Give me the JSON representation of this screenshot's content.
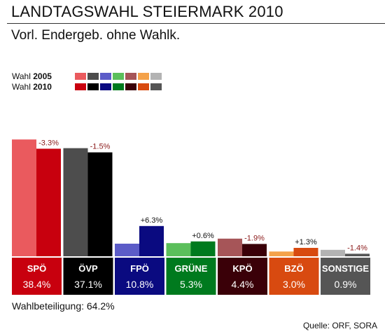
{
  "title": "LANDTAGSWAHL STEIERMARK 2010",
  "subtitle": "Vorl. Endergeb. ohne Wahlk.",
  "legend": [
    {
      "prefix": "Wahl ",
      "year": "2005"
    },
    {
      "prefix": "Wahl ",
      "year": "2010"
    }
  ],
  "turnout": "Wahlbeteiligung: 64.2%",
  "source": "Quelle: ORF, SORA",
  "chart_data": {
    "type": "bar",
    "title": "LANDTAGSWAHL STEIERMARK 2010",
    "subtitle": "Vorl. Endergeb. ohne Wahlk.",
    "categories": [
      "SPÖ",
      "ÖVP",
      "FPÖ",
      "GRÜNE",
      "KPÖ",
      "BZÖ",
      "SONSTIGE"
    ],
    "series": [
      {
        "name": "Wahl 2005",
        "values": [
          41.7,
          38.6,
          4.5,
          4.7,
          6.3,
          1.7,
          2.3
        ],
        "colors": [
          "#ea5a5e",
          "#4d4d4d",
          "#5c5cc8",
          "#5bbf5b",
          "#a65558",
          "#f4a24a",
          "#b3b3b3"
        ]
      },
      {
        "name": "Wahl 2010",
        "values": [
          38.4,
          37.1,
          10.8,
          5.3,
          4.4,
          3.0,
          0.9
        ],
        "colors": [
          "#c8000e",
          "#000000",
          "#0a0a80",
          "#007a1e",
          "#3a0008",
          "#d84a10",
          "#555555"
        ]
      }
    ],
    "value_labels": [
      "38.4%",
      "37.1%",
      "10.8%",
      "5.3%",
      "4.4%",
      "3.0%",
      "0.9%"
    ],
    "diff_labels": [
      "-3.3%",
      "-1.5%",
      "+6.3%",
      "+0.6%",
      "-1.9%",
      "+1.3%",
      "-1.4%"
    ],
    "diff_colors": [
      "#8b1a1a",
      "#8b1a1a",
      "#111111",
      "#111111",
      "#8b1a1a",
      "#111111",
      "#8b1a1a"
    ],
    "box_colors": [
      "#c8000e",
      "#000000",
      "#0a0a80",
      "#007a1e",
      "#3a0008",
      "#d84a10",
      "#555555"
    ],
    "ylim": [
      0,
      45
    ],
    "grid": false
  }
}
